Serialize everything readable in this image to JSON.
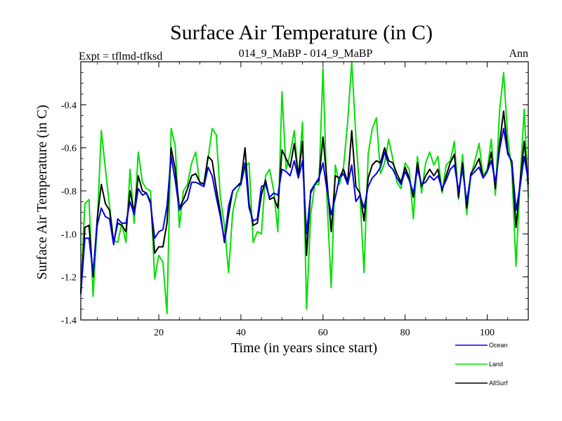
{
  "chart_data": {
    "type": "line",
    "title": "Surface Air Temperature (in C)",
    "left_label": "Expt = tflmd-tfksd",
    "center_label": "014_9_MaBP - 014_9_MaBP",
    "right_label": "Ann",
    "xlabel": "Time (in years since start)",
    "ylabel": "Surface Air Temperature (in C)",
    "xlim": [
      1,
      110
    ],
    "ylim": [
      -1.4,
      -0.2
    ],
    "xticks": [
      20,
      40,
      60,
      80,
      100
    ],
    "yticks": [
      -1.4,
      -1.2,
      -1.0,
      -0.8,
      -0.6,
      -0.4
    ],
    "ytick_labels": [
      "-1.4",
      "-1.2",
      "-1.0",
      "-0.8",
      "-0.6",
      "-0.4"
    ],
    "xtick_labels": [
      "20",
      "40",
      "60",
      "80",
      "100"
    ],
    "series": [
      {
        "name": "Land",
        "color": "#00e000",
        "values": [
          -1.26,
          -0.86,
          -0.84,
          -1.29,
          -0.95,
          -0.52,
          -0.7,
          -0.87,
          -1.03,
          -1.04,
          -0.95,
          -1.04,
          -0.7,
          -0.95,
          -0.62,
          -0.76,
          -0.79,
          -0.8,
          -1.21,
          -1.1,
          -1.13,
          -1.37,
          -0.51,
          -0.59,
          -0.97,
          -0.8,
          -0.77,
          -0.67,
          -0.62,
          -0.77,
          -0.76,
          -0.65,
          -0.51,
          -0.54,
          -0.83,
          -0.96,
          -1.18,
          -0.9,
          -0.81,
          -0.77,
          -0.69,
          -0.67,
          -1.04,
          -0.99,
          -1.0,
          -0.73,
          -0.7,
          -0.8,
          -0.99,
          -0.34,
          -0.7,
          -0.63,
          -0.52,
          -0.74,
          -0.48,
          -1.35,
          -0.91,
          -0.77,
          -0.77,
          -0.23,
          -0.85,
          -1.25,
          -0.68,
          -0.77,
          -0.69,
          -0.48,
          -0.2,
          -0.55,
          -0.82,
          -1.18,
          -0.63,
          -0.51,
          -0.46,
          -0.72,
          -0.67,
          -0.56,
          -0.65,
          -0.76,
          -0.79,
          -0.67,
          -0.7,
          -0.93,
          -0.64,
          -0.81,
          -0.67,
          -0.62,
          -0.68,
          -0.64,
          -0.81,
          -0.68,
          -0.66,
          -0.57,
          -0.84,
          -0.63,
          -0.91,
          -0.73,
          -0.66,
          -0.58,
          -0.73,
          -0.7,
          -0.56,
          -0.82,
          -0.43,
          -0.25,
          -0.56,
          -0.7,
          -1.15,
          -0.76,
          -0.42,
          -0.83
        ]
      },
      {
        "name": "AllSurf",
        "color": "#000000",
        "values": [
          -1.27,
          -0.97,
          -0.96,
          -1.2,
          -0.93,
          -0.77,
          -0.86,
          -0.89,
          -1.04,
          -0.95,
          -0.96,
          -0.99,
          -0.8,
          -0.9,
          -0.73,
          -0.8,
          -0.81,
          -0.85,
          -1.09,
          -1.06,
          -1.06,
          -0.95,
          -0.6,
          -0.7,
          -0.88,
          -0.84,
          -0.79,
          -0.73,
          -0.72,
          -0.76,
          -0.77,
          -0.64,
          -0.66,
          -0.79,
          -0.9,
          -1.04,
          -0.91,
          -0.8,
          -0.78,
          -0.76,
          -0.6,
          -0.86,
          -0.96,
          -0.95,
          -0.82,
          -0.75,
          -0.84,
          -0.83,
          -0.88,
          -0.61,
          -0.65,
          -0.69,
          -0.58,
          -0.73,
          -0.57,
          -1.1,
          -0.8,
          -0.77,
          -0.75,
          -0.55,
          -0.76,
          -0.99,
          -0.73,
          -0.74,
          -0.7,
          -0.76,
          -0.52,
          -0.78,
          -0.81,
          -0.94,
          -0.74,
          -0.68,
          -0.66,
          -0.67,
          -0.6,
          -0.66,
          -0.67,
          -0.72,
          -0.76,
          -0.69,
          -0.74,
          -0.83,
          -0.67,
          -0.78,
          -0.73,
          -0.7,
          -0.73,
          -0.7,
          -0.8,
          -0.73,
          -0.67,
          -0.63,
          -0.83,
          -0.67,
          -0.88,
          -0.72,
          -0.69,
          -0.65,
          -0.74,
          -0.71,
          -0.62,
          -0.79,
          -0.58,
          -0.43,
          -0.62,
          -0.67,
          -0.97,
          -0.76,
          -0.57,
          -0.77
        ]
      },
      {
        "name": "Ocean",
        "color": "#0000e0",
        "values": [
          -1.28,
          -1.02,
          -1.02,
          -1.18,
          -0.96,
          -0.88,
          -0.92,
          -0.93,
          -1.05,
          -0.93,
          -0.95,
          -0.95,
          -0.85,
          -0.91,
          -0.79,
          -0.82,
          -0.81,
          -0.86,
          -1.02,
          -0.99,
          -0.98,
          -0.87,
          -0.64,
          -0.75,
          -0.89,
          -0.86,
          -0.84,
          -0.76,
          -0.76,
          -0.77,
          -0.78,
          -0.69,
          -0.73,
          -0.83,
          -0.92,
          -1.03,
          -0.87,
          -0.8,
          -0.78,
          -0.77,
          -0.67,
          -0.88,
          -0.94,
          -0.93,
          -0.78,
          -0.77,
          -0.83,
          -0.81,
          -0.82,
          -0.7,
          -0.71,
          -0.73,
          -0.66,
          -0.74,
          -0.66,
          -1.0,
          -0.81,
          -0.77,
          -0.74,
          -0.67,
          -0.8,
          -0.91,
          -0.83,
          -0.74,
          -0.72,
          -0.77,
          -0.68,
          -0.85,
          -0.82,
          -0.88,
          -0.78,
          -0.74,
          -0.72,
          -0.69,
          -0.62,
          -0.68,
          -0.7,
          -0.74,
          -0.77,
          -0.71,
          -0.75,
          -0.81,
          -0.7,
          -0.77,
          -0.76,
          -0.73,
          -0.75,
          -0.73,
          -0.79,
          -0.75,
          -0.7,
          -0.68,
          -0.8,
          -0.7,
          -0.85,
          -0.73,
          -0.71,
          -0.69,
          -0.74,
          -0.71,
          -0.66,
          -0.76,
          -0.61,
          -0.51,
          -0.63,
          -0.66,
          -0.89,
          -0.78,
          -0.64,
          -0.75
        ]
      }
    ],
    "legend": [
      {
        "name": "Ocean",
        "color": "#0000e0"
      },
      {
        "name": "Land",
        "color": "#00e000"
      },
      {
        "name": "AllSurf",
        "color": "#000000"
      }
    ],
    "legend_placement": "below-right",
    "grid": false
  }
}
